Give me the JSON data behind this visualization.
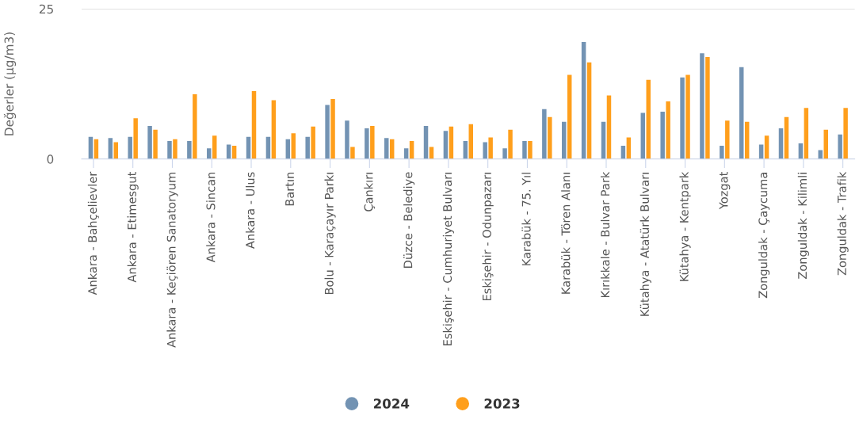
{
  "chart_data": {
    "type": "bar",
    "ylabel": "Değerler (µg/m3)",
    "categories": [
      "Ankara - Bahçelievler",
      null,
      "Ankara - Etimesgut",
      null,
      "Ankara - Keçiören Sanatoryum",
      null,
      "Ankara - Sincan",
      null,
      "Ankara - Ulus",
      null,
      "Bartın",
      null,
      "Bolu - Karaçayır Parkı",
      null,
      "Çankırı",
      null,
      "Düzce - Belediye",
      null,
      "Eskişehir - Cumhuriyet Bulvarı",
      null,
      "Eskişehir - Odunpazarı",
      null,
      "Karabük - 75. Yıl",
      null,
      "Karabük - Tören Alanı",
      null,
      "Kırıkkale - Bulvar Park",
      null,
      "Kütahya - Atatürk Bulvarı",
      null,
      "Kütahya - Kentpark",
      null,
      "Yozgat",
      null,
      "Zonguldak - Çaycuma",
      null,
      "Zonguldak - Kilimli",
      null,
      "Zonguldak - Trafik"
    ],
    "series": [
      {
        "name": "2024",
        "color": "#7393b3",
        "values": [
          3.7,
          3.5,
          3.7,
          5.5,
          3.0,
          3.0,
          1.8,
          2.4,
          3.7,
          3.7,
          3.3,
          3.7,
          9.0,
          6.4,
          5.1,
          3.5,
          1.8,
          5.5,
          4.7,
          3.0,
          2.8,
          1.8,
          3.0,
          8.3,
          6.2,
          19.5,
          6.2,
          2.2,
          7.7,
          7.9,
          13.6,
          17.6,
          2.2,
          15.3,
          2.4,
          5.1,
          2.6,
          1.5,
          4.1
        ]
      },
      {
        "name": "2023",
        "color": "#ff9f1c",
        "values": [
          3.3,
          2.8,
          6.8,
          4.9,
          3.3,
          10.8,
          3.9,
          2.2,
          11.3,
          9.8,
          4.3,
          5.4,
          10.0,
          2.0,
          5.5,
          3.3,
          3.0,
          2.0,
          5.4,
          5.8,
          3.6,
          4.9,
          3.0,
          7.0,
          14.0,
          16.1,
          10.6,
          3.6,
          13.2,
          9.6,
          14.0,
          17.0,
          6.4,
          6.2,
          3.9,
          7.0,
          8.5,
          4.9,
          8.5
        ]
      }
    ],
    "ylim": [
      0,
      25
    ],
    "yticks": [
      0,
      25
    ],
    "grid": "y",
    "legend": "bottom"
  }
}
